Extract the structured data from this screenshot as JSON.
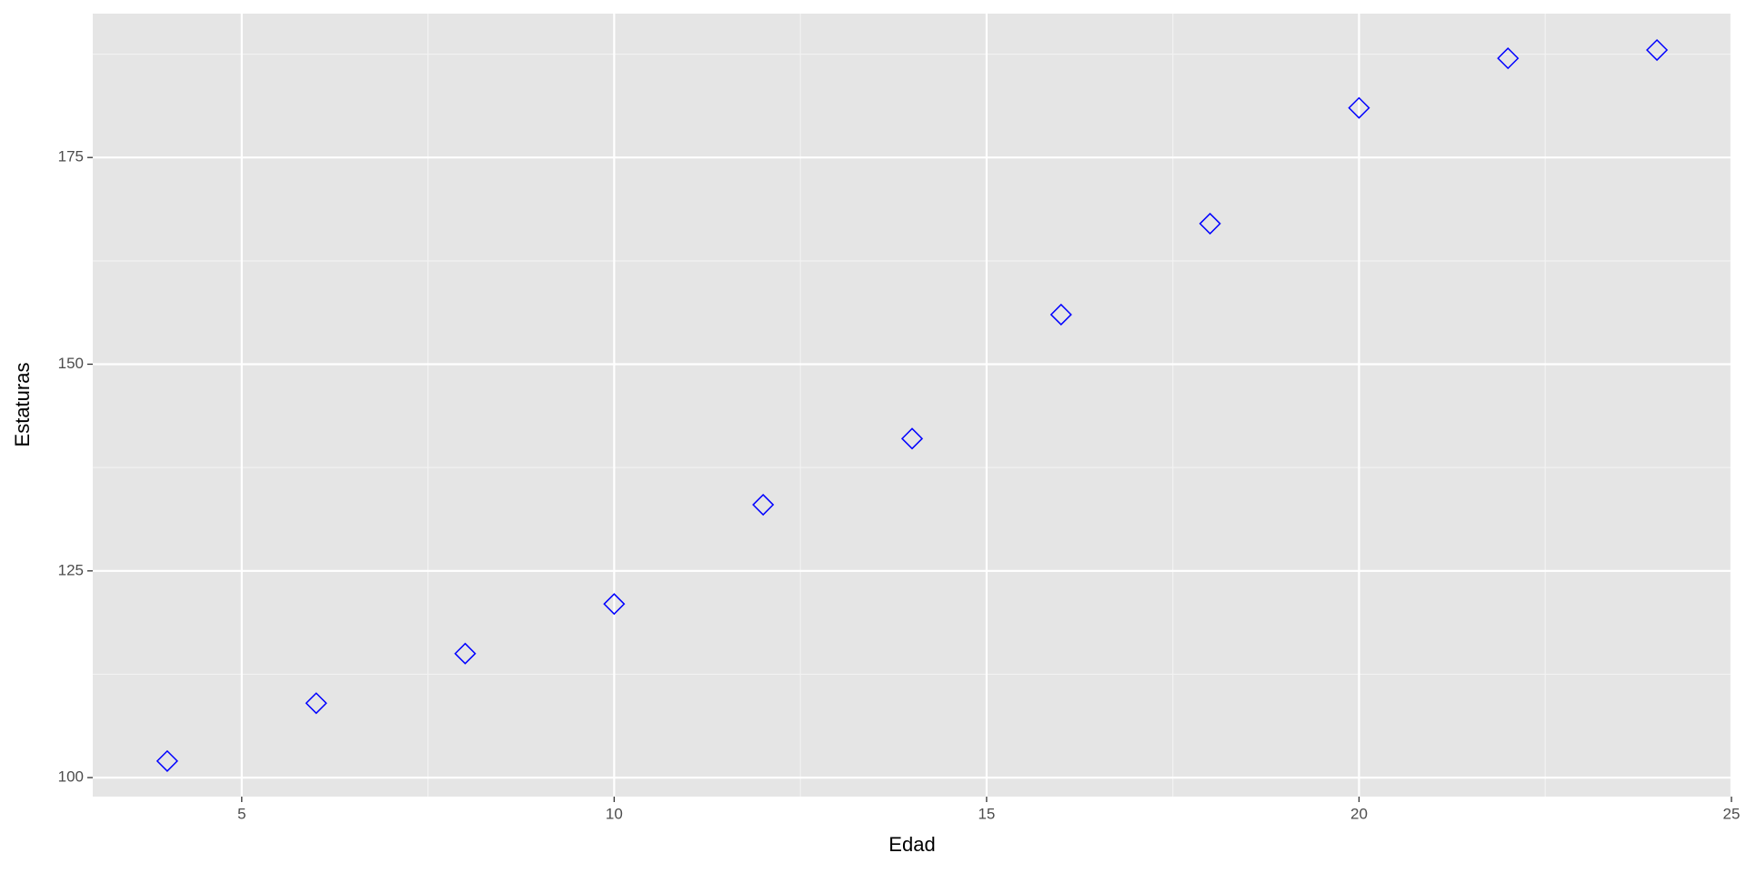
{
  "chart_data": {
    "type": "scatter",
    "x_label": "Edad",
    "y_label": "Estaturas",
    "x": [
      4,
      6,
      8,
      10,
      12,
      14,
      16,
      18,
      20,
      22,
      24
    ],
    "series": [
      {
        "color": "#0000ff",
        "values": [
          102,
          109,
          115,
          121,
          133,
          141,
          156,
          167,
          181,
          187,
          188
        ]
      }
    ],
    "xlim": [
      3,
      25
    ],
    "xticks": [
      5,
      10,
      15,
      20,
      25
    ],
    "ylim": [
      97.7,
      192.4
    ],
    "yticks": [
      100,
      125,
      150,
      175
    ],
    "grid": true,
    "marker": "diamond-open"
  }
}
